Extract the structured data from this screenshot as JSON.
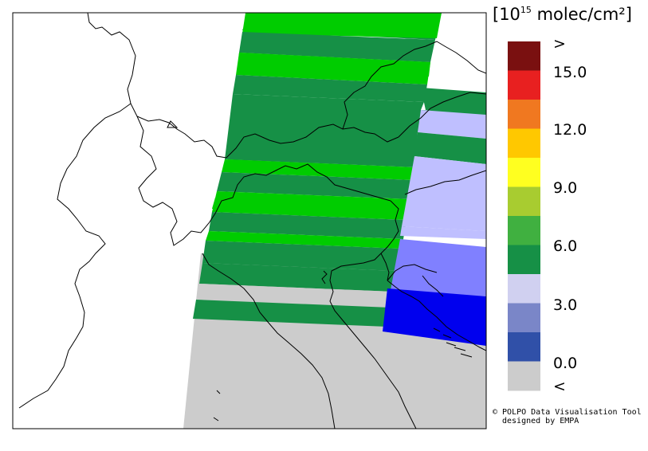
{
  "legend": {
    "units_prefix": "[10",
    "units_exponent": "15",
    "units_suffix": " molec/cm²]",
    "ticks": [
      ">",
      "15.0",
      "12.0",
      "9.0",
      "6.0",
      "3.0",
      "0.0",
      "<"
    ],
    "colors": [
      "#7a1010",
      "#e82020",
      "#f07820",
      "#ffc800",
      "#ffff20",
      "#a8cc30",
      "#40b040",
      "#169046",
      "#d0d0f0",
      "#7a86c8",
      "#3050a8",
      "#cccccc"
    ]
  },
  "swath": {
    "colors": {
      "dark_green": "#169046",
      "light_green": "#00cc00",
      "lavender": "#bfbfff",
      "periwinkle": "#8080ff",
      "blue": "#0000ee",
      "gray": "#cccccc"
    }
  },
  "credit": {
    "line1": "© POLPO Data Visualisation Tool",
    "line2": "designed by EMPA"
  }
}
